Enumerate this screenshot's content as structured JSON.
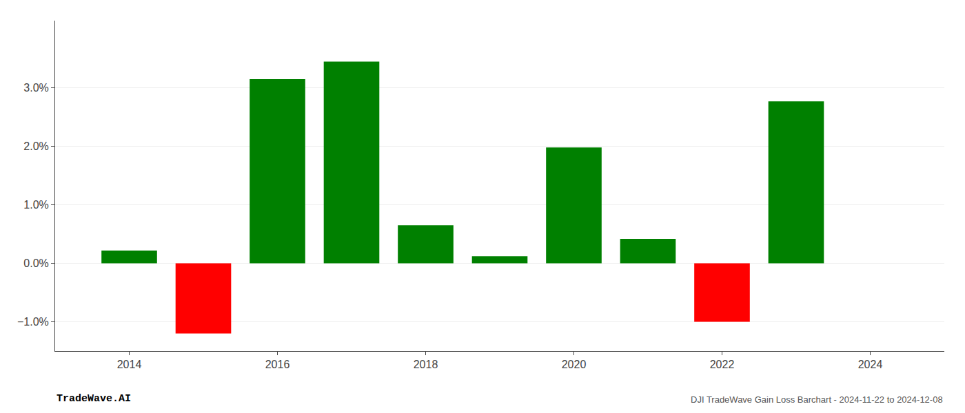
{
  "chart_data": {
    "type": "bar",
    "title": "DJI TradeWave Gain Loss Barchart - 2024-11-22 to 2024-12-08",
    "annotations": [
      "TradeWave.AI"
    ],
    "x": [
      2014,
      2015,
      2016,
      2017,
      2018,
      2019,
      2020,
      2021,
      2022,
      2023
    ],
    "values": [
      0.0022,
      -0.012,
      0.0315,
      0.0345,
      0.0065,
      0.0012,
      0.0198,
      0.0042,
      -0.01,
      0.0277
    ],
    "colors": [
      "#008000",
      "#ff0000",
      "#008000",
      "#008000",
      "#008000",
      "#008000",
      "#008000",
      "#008000",
      "#ff0000",
      "#008000"
    ],
    "xlim": [
      2013.0,
      2025.0
    ],
    "xticks": [
      2014,
      2016,
      2018,
      2020,
      2022,
      2024
    ],
    "ylim": [
      -0.015,
      0.0415
    ],
    "yticks": [
      {
        "value": -0.01,
        "label": "−1.0%"
      },
      {
        "value": 0.0,
        "label": "0.0%"
      },
      {
        "value": 0.01,
        "label": "1.0%"
      },
      {
        "value": 0.02,
        "label": "2.0%"
      },
      {
        "value": 0.03,
        "label": "3.0%"
      }
    ],
    "grid": true
  }
}
